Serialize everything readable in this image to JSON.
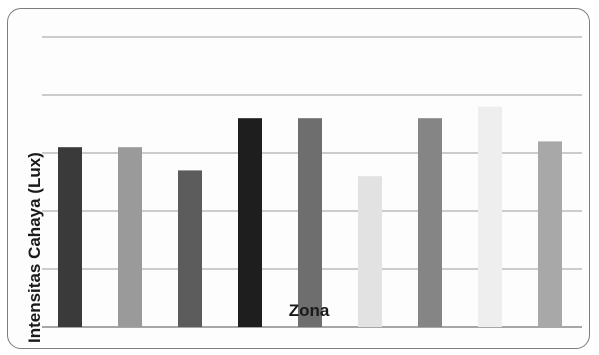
{
  "chart_data": {
    "type": "bar",
    "xlabel": "Zona",
    "ylabel": "Intensitas Cahaya (Lux)",
    "grid": true,
    "ylim": [
      0,
      5.4
    ],
    "gridlines": [
      0,
      1,
      2,
      3,
      4,
      5
    ],
    "values": [
      3.1,
      3.1,
      2.7,
      3.6,
      3.6,
      2.6,
      3.6,
      3.8,
      3.2
    ],
    "bar_colors": [
      "#3a3a3a",
      "#9a9a9a",
      "#5c5c5c",
      "#1e1e1e",
      "#6e6e6e",
      "#e2e2e2",
      "#858585",
      "#eeeeee",
      "#a8a8a8"
    ]
  }
}
